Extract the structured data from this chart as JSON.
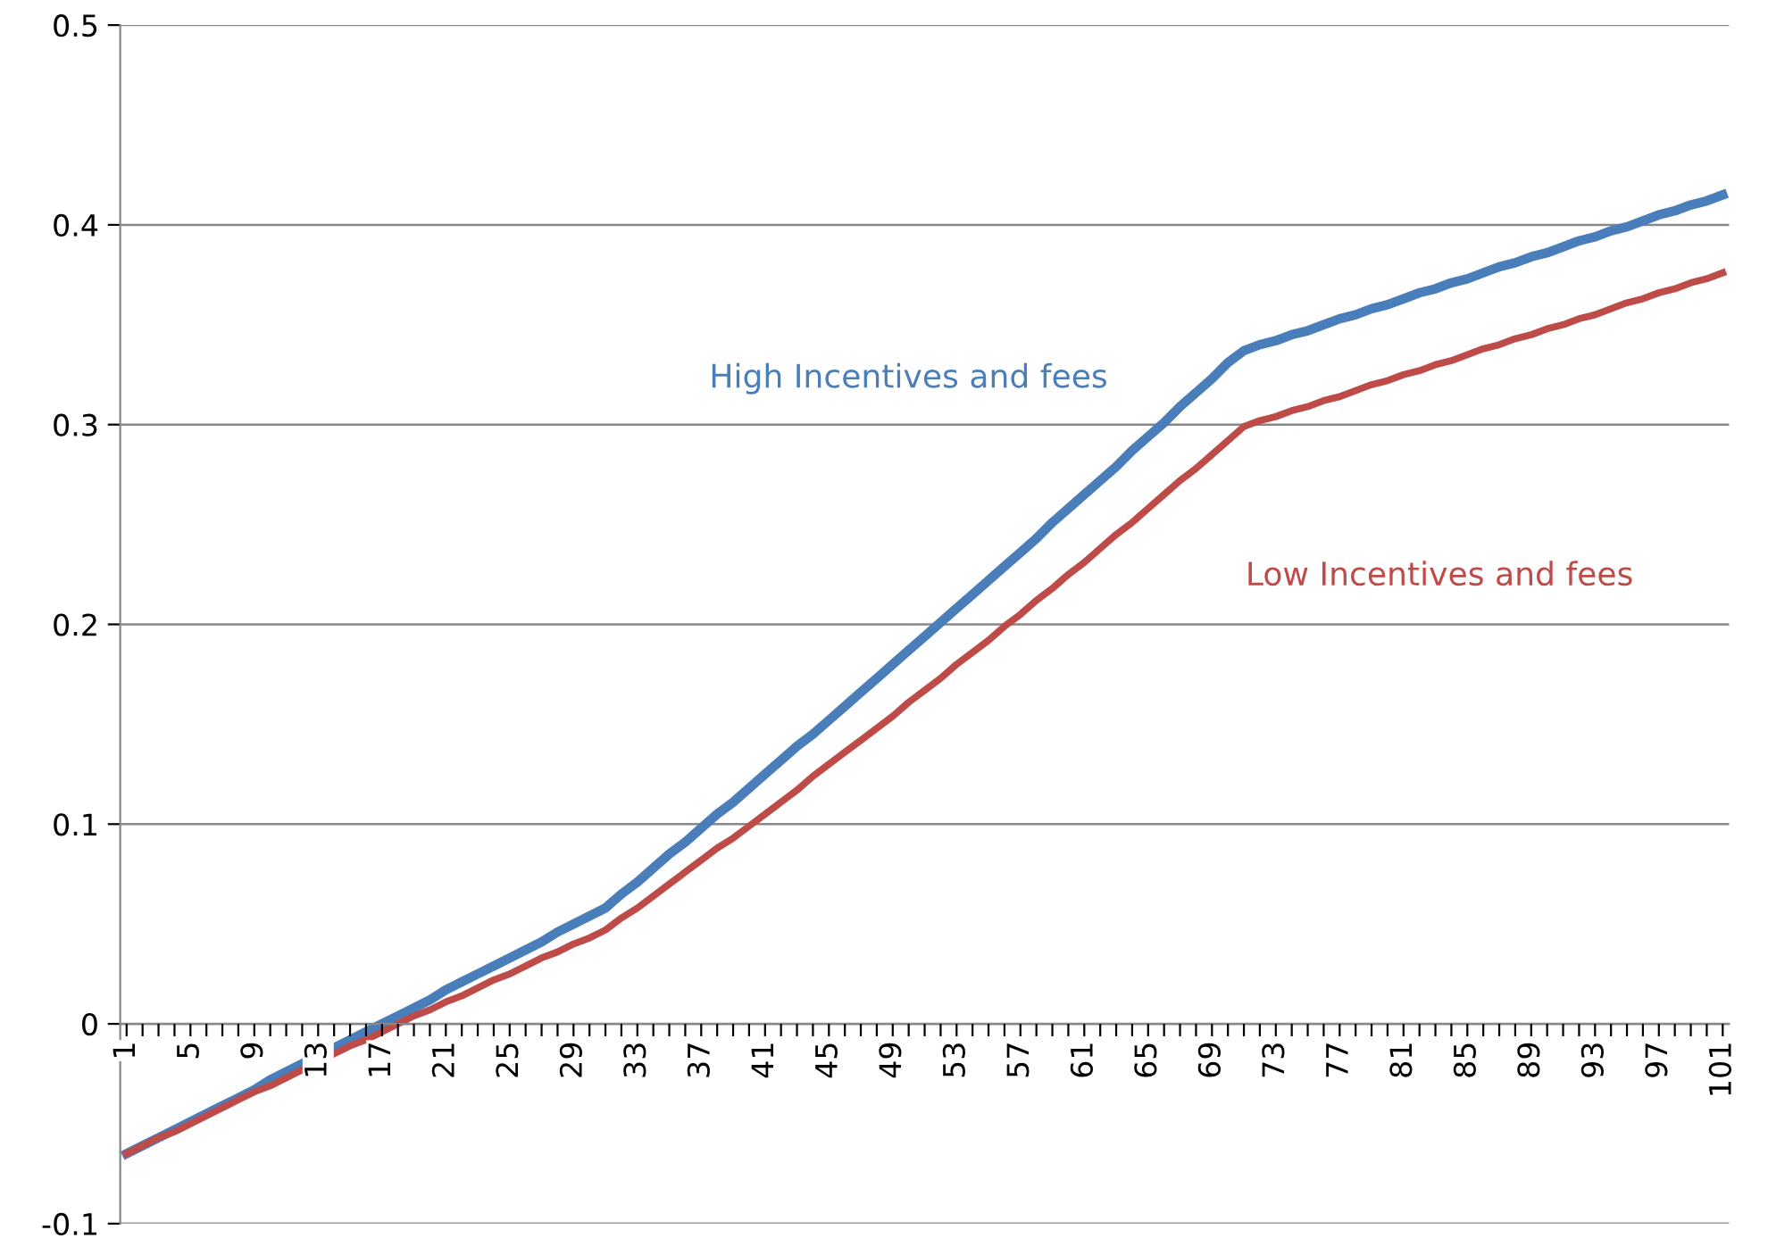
{
  "chart_data": {
    "type": "line",
    "categories": [
      "1",
      null,
      null,
      null,
      "5",
      null,
      null,
      null,
      "9",
      null,
      null,
      null,
      "13",
      null,
      null,
      null,
      "17",
      null,
      null,
      null,
      "21",
      null,
      null,
      null,
      "25",
      null,
      null,
      null,
      "29",
      null,
      null,
      null,
      "33",
      null,
      null,
      null,
      "37",
      null,
      null,
      null,
      "41",
      null,
      null,
      null,
      "45",
      null,
      null,
      null,
      "49",
      null,
      null,
      null,
      "53",
      null,
      null,
      null,
      "57",
      null,
      null,
      null,
      "61",
      null,
      null,
      null,
      "65",
      null,
      null,
      null,
      "69",
      null,
      null,
      null,
      "73",
      null,
      null,
      null,
      "77",
      null,
      null,
      null,
      "81",
      null,
      null,
      null,
      "85",
      null,
      null,
      null,
      "89",
      null,
      null,
      null,
      "93",
      null,
      null,
      null,
      "97",
      null,
      null,
      null,
      "101"
    ],
    "series": [
      {
        "name": "High Incentives and fees",
        "color": "#4a7ebb",
        "values": [
          -0.065,
          -0.061,
          -0.057,
          -0.053,
          -0.049,
          -0.045,
          -0.041,
          -0.037,
          -0.033,
          -0.028,
          -0.024,
          -0.02,
          -0.016,
          -0.012,
          -0.008,
          -0.004,
          0.0,
          0.004,
          0.008,
          0.012,
          0.017,
          0.021,
          0.025,
          0.029,
          0.033,
          0.037,
          0.041,
          0.046,
          0.05,
          0.054,
          0.058,
          0.065,
          0.071,
          0.078,
          0.085,
          0.091,
          0.098,
          0.105,
          0.111,
          0.118,
          0.125,
          0.132,
          0.139,
          0.145,
          0.152,
          0.159,
          0.166,
          0.173,
          0.18,
          0.187,
          0.194,
          0.201,
          0.208,
          0.215,
          0.222,
          0.229,
          0.236,
          0.243,
          0.251,
          0.258,
          0.265,
          0.272,
          0.279,
          0.287,
          0.294,
          0.301,
          0.309,
          0.316,
          0.323,
          0.331,
          0.337,
          0.34,
          0.342,
          0.345,
          0.347,
          0.35,
          0.353,
          0.355,
          0.358,
          0.36,
          0.363,
          0.366,
          0.368,
          0.371,
          0.373,
          0.376,
          0.379,
          0.381,
          0.384,
          0.386,
          0.389,
          0.392,
          0.394,
          0.397,
          0.399,
          0.402,
          0.405,
          0.407,
          0.41,
          0.412,
          0.415
        ]
      },
      {
        "name": "Low Incentives and fees",
        "color": "#be4b48",
        "values": [
          -0.065,
          -0.061,
          -0.057,
          -0.054,
          -0.05,
          -0.046,
          -0.042,
          -0.038,
          -0.034,
          -0.031,
          -0.027,
          -0.023,
          -0.019,
          -0.015,
          -0.011,
          -0.008,
          -0.004,
          0.0,
          0.004,
          0.007,
          0.011,
          0.014,
          0.018,
          0.022,
          0.025,
          0.029,
          0.033,
          0.036,
          0.04,
          0.043,
          0.047,
          0.053,
          0.058,
          0.064,
          0.07,
          0.076,
          0.082,
          0.088,
          0.093,
          0.099,
          0.105,
          0.111,
          0.117,
          0.124,
          0.13,
          0.136,
          0.142,
          0.148,
          0.154,
          0.161,
          0.167,
          0.173,
          0.18,
          0.186,
          0.192,
          0.199,
          0.205,
          0.212,
          0.218,
          0.225,
          0.231,
          0.238,
          0.245,
          0.251,
          0.258,
          0.265,
          0.272,
          0.278,
          0.285,
          0.292,
          0.299,
          0.302,
          0.304,
          0.307,
          0.309,
          0.312,
          0.314,
          0.317,
          0.32,
          0.322,
          0.325,
          0.327,
          0.33,
          0.332,
          0.335,
          0.338,
          0.34,
          0.343,
          0.345,
          0.348,
          0.35,
          0.353,
          0.355,
          0.358,
          0.361,
          0.363,
          0.366,
          0.368,
          0.371,
          0.373,
          0.376
        ]
      }
    ],
    "ylim": [
      -0.1,
      0.5
    ],
    "yticks": [
      -0.1,
      0,
      0.1,
      0.2,
      0.3,
      0.4,
      0.5
    ],
    "grid": "y",
    "legend": false,
    "marker": "none",
    "line_style": "solid"
  }
}
